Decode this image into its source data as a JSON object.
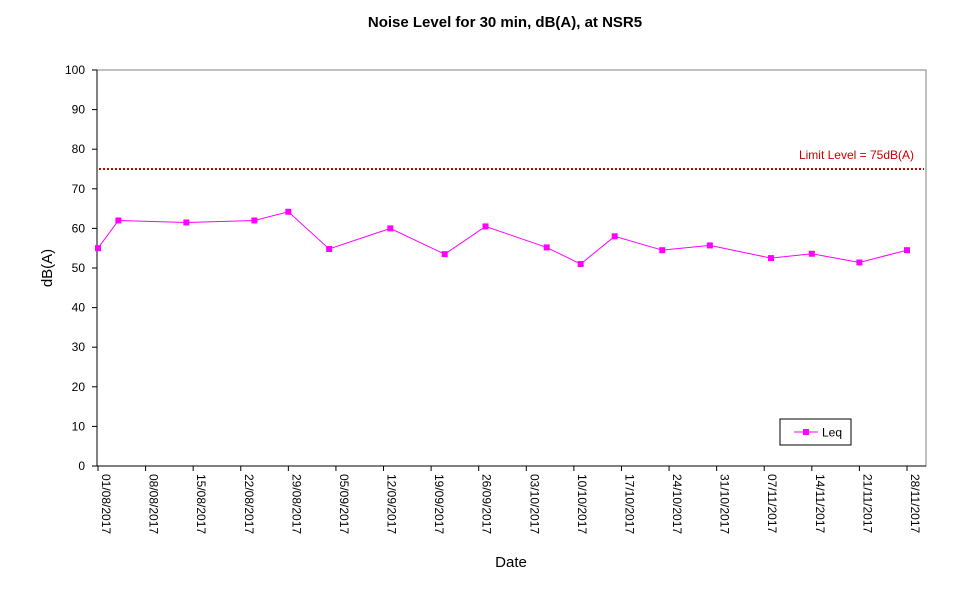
{
  "chart_data": {
    "type": "line",
    "title": "Noise Level for 30 min, dB(A), at NSR5",
    "xlabel": "Date",
    "ylabel": "dB(A)",
    "ylim": [
      0,
      100
    ],
    "yticks": [
      0,
      10,
      20,
      30,
      40,
      50,
      60,
      70,
      80,
      90,
      100
    ],
    "xlim": [
      "01/08/2017",
      "28/11/2017"
    ],
    "xticks": [
      "01/08/2017",
      "08/08/2017",
      "15/08/2017",
      "22/08/2017",
      "29/08/2017",
      "05/09/2017",
      "12/09/2017",
      "19/09/2017",
      "26/09/2017",
      "03/10/2017",
      "10/10/2017",
      "17/10/2017",
      "24/10/2017",
      "31/10/2017",
      "07/11/2017",
      "14/11/2017",
      "21/11/2017",
      "28/11/2017"
    ],
    "grid": false,
    "legend_position": "bottom-right",
    "limit_line": {
      "value": 75,
      "label": "Limit Level = 75dB(A)",
      "color": "#cc0000"
    },
    "series": [
      {
        "name": "Leq",
        "color": "#ff00ff",
        "marker": "square",
        "x": [
          "01/08/2017",
          "04/08/2017",
          "14/08/2017",
          "24/08/2017",
          "29/08/2017",
          "04/09/2017",
          "13/09/2017",
          "21/09/2017",
          "27/09/2017",
          "06/10/2017",
          "11/10/2017",
          "16/10/2017",
          "23/10/2017",
          "30/10/2017",
          "08/11/2017",
          "14/11/2017",
          "21/11/2017",
          "28/11/2017"
        ],
        "values": [
          55.0,
          62.0,
          61.5,
          62.0,
          64.2,
          54.8,
          60.0,
          53.5,
          60.5,
          55.2,
          51.0,
          58.0,
          54.5,
          55.7,
          52.5,
          53.6,
          51.4,
          54.5
        ]
      }
    ]
  }
}
